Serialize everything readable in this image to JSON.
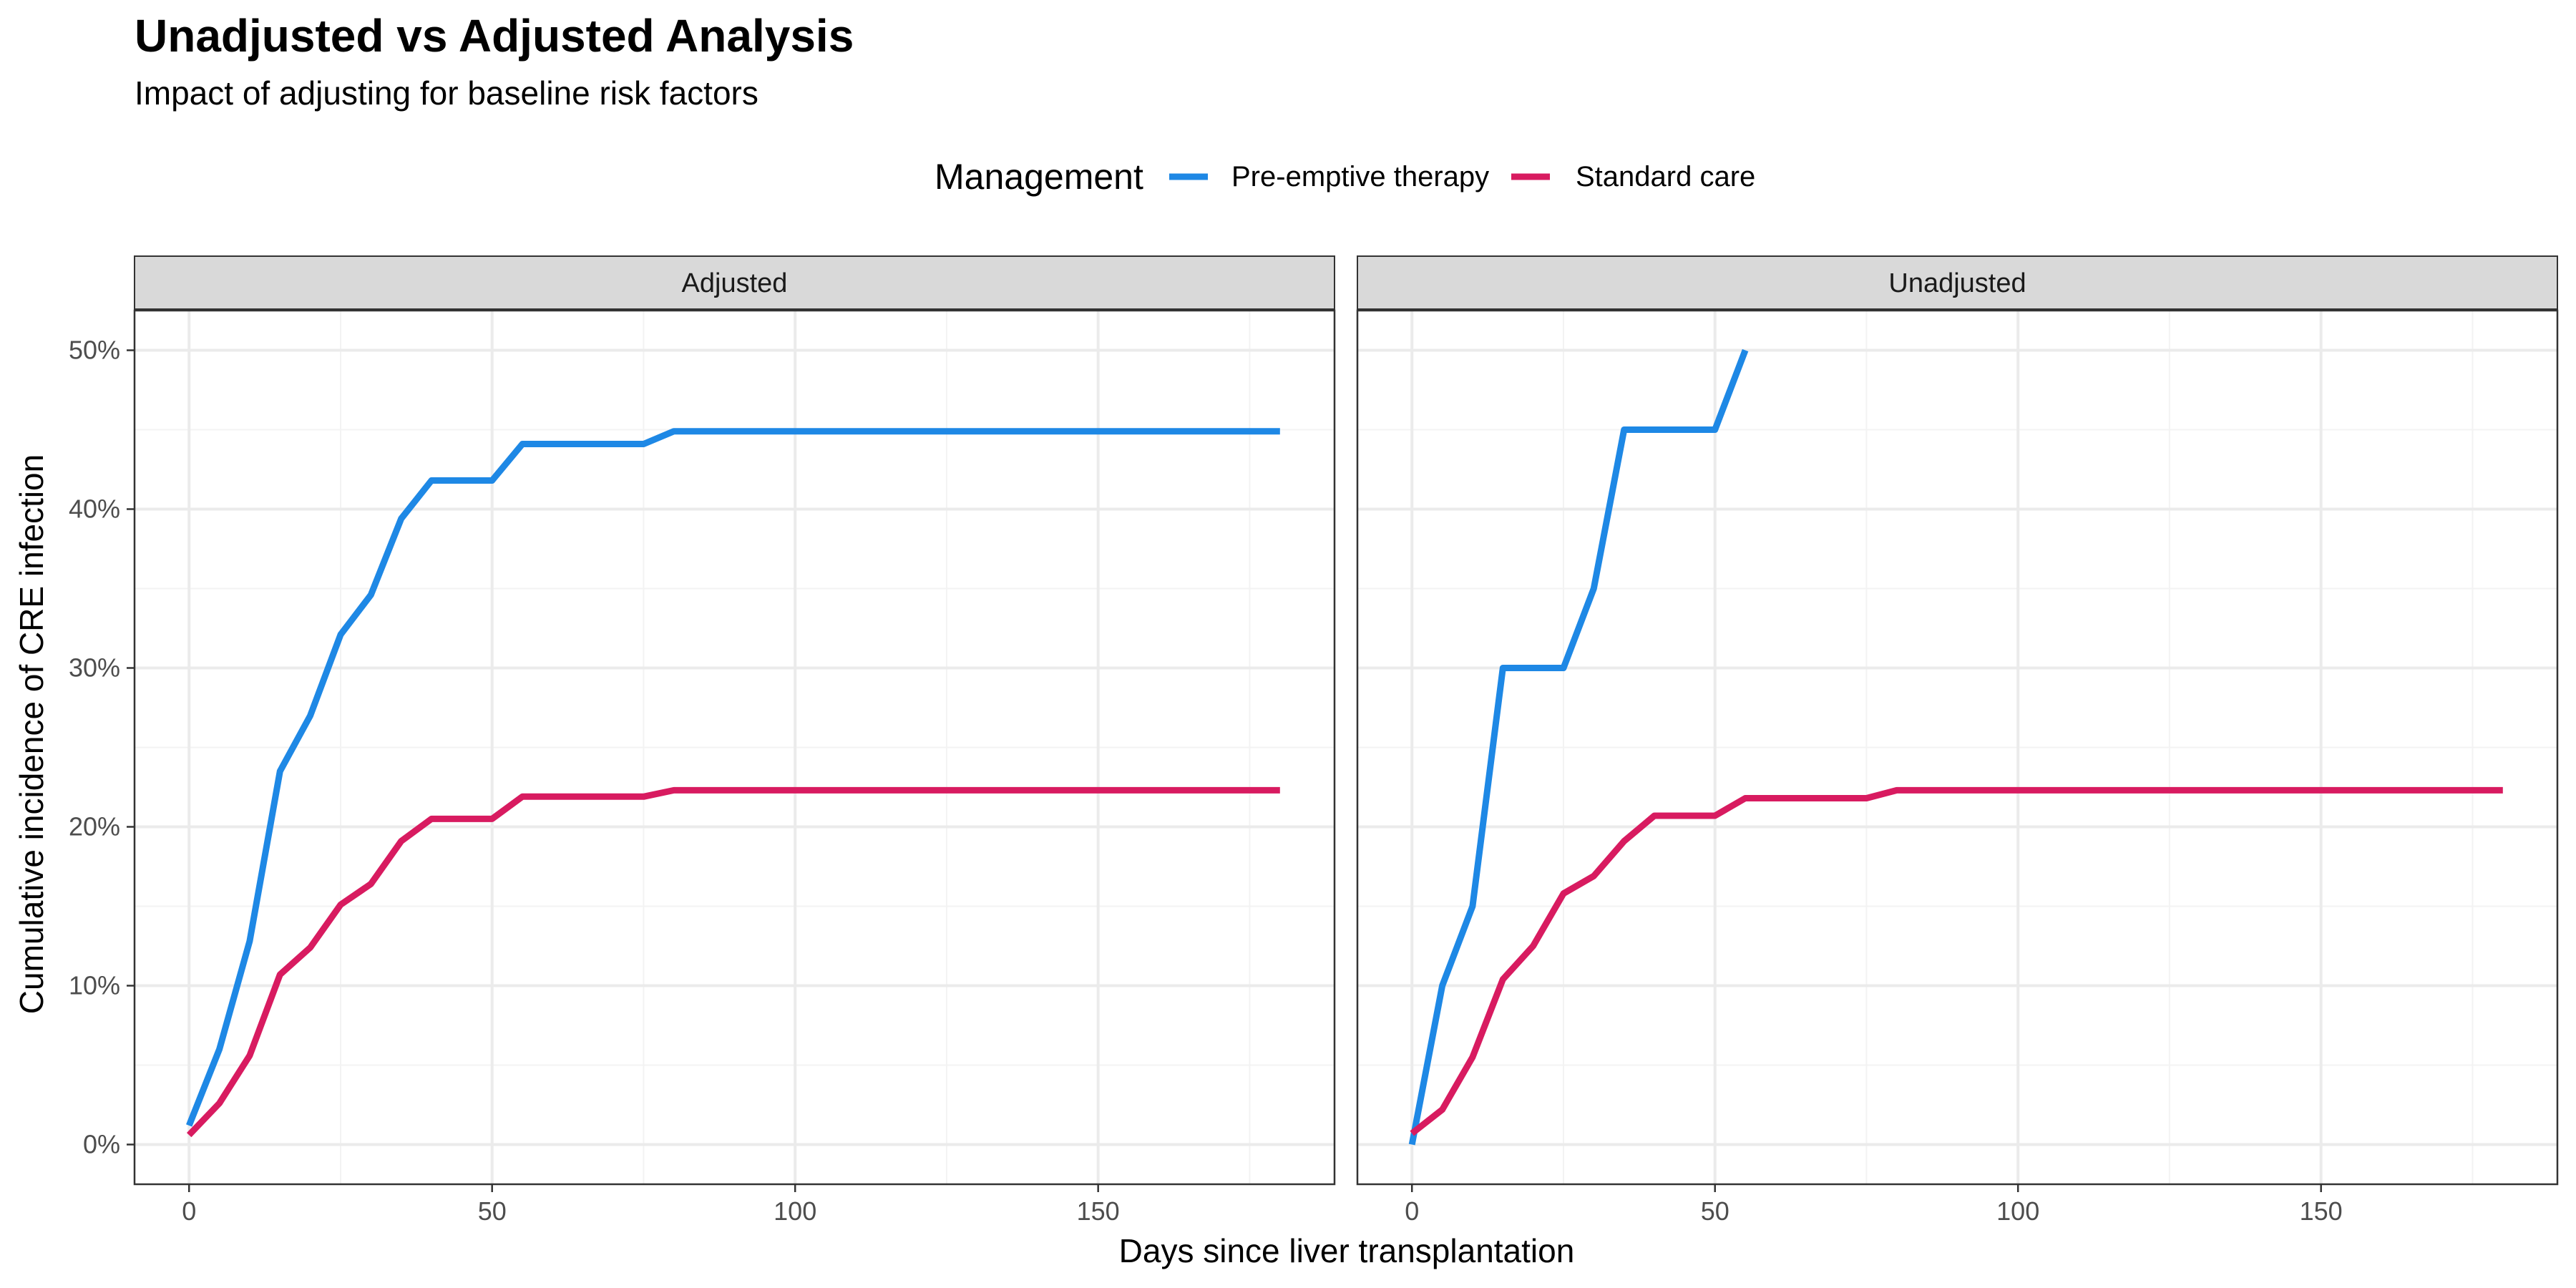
{
  "chart_data": {
    "type": "line",
    "title": "Unadjusted vs Adjusted Analysis",
    "subtitle": "Impact of adjusting for baseline risk factors",
    "xlabel": "Days since liver transplantation",
    "ylabel": "Cumulative incidence of CRE infection",
    "legend": {
      "title": "Management",
      "placement": "top",
      "entries": [
        {
          "name": "Pre-emptive therapy",
          "color": "#1E88E5"
        },
        {
          "name": "Standard care",
          "color": "#D81B60"
        }
      ]
    },
    "xlim": [
      -9,
      189
    ],
    "ylim": [
      -0.025,
      0.525
    ],
    "x_ticks": [
      0,
      50,
      100,
      150
    ],
    "x_tick_labels": [
      "0",
      "50",
      "100",
      "150"
    ],
    "y_ticks": [
      0,
      0.1,
      0.2,
      0.3,
      0.4,
      0.5
    ],
    "y_tick_labels": [
      "0%",
      "10%",
      "20%",
      "30%",
      "40%",
      "50%"
    ],
    "grid": true,
    "facets": [
      {
        "label": "Adjusted",
        "series": [
          {
            "name": "Pre-emptive therapy",
            "color": "#1E88E5",
            "x": [
              0,
              5,
              10,
              15,
              20,
              25,
              30,
              35,
              40,
              45,
              50,
              55,
              60,
              65,
              70,
              75,
              80,
              90,
              100,
              120,
              150,
              180
            ],
            "y": [
              0.012,
              0.06,
              0.128,
              0.235,
              0.27,
              0.321,
              0.346,
              0.394,
              0.418,
              0.418,
              0.418,
              0.441,
              0.441,
              0.441,
              0.441,
              0.441,
              0.449,
              0.449,
              0.449,
              0.449,
              0.449,
              0.449
            ]
          },
          {
            "name": "Standard care",
            "color": "#D81B60",
            "x": [
              0,
              5,
              10,
              15,
              20,
              25,
              30,
              35,
              40,
              45,
              50,
              55,
              60,
              65,
              70,
              75,
              80,
              90,
              100,
              120,
              150,
              180
            ],
            "y": [
              0.006,
              0.026,
              0.056,
              0.107,
              0.124,
              0.151,
              0.164,
              0.191,
              0.205,
              0.205,
              0.205,
              0.219,
              0.219,
              0.219,
              0.219,
              0.219,
              0.223,
              0.223,
              0.223,
              0.223,
              0.223,
              0.223
            ]
          }
        ]
      },
      {
        "label": "Unadjusted",
        "series": [
          {
            "name": "Pre-emptive therapy",
            "color": "#1E88E5",
            "x": [
              0,
              5,
              10,
              15,
              20,
              25,
              30,
              35,
              40,
              45,
              50,
              55
            ],
            "y": [
              0.0,
              0.1,
              0.15,
              0.3,
              0.3,
              0.3,
              0.35,
              0.45,
              0.45,
              0.45,
              0.45,
              0.5
            ]
          },
          {
            "name": "Standard care",
            "color": "#D81B60",
            "x": [
              0,
              5,
              10,
              15,
              20,
              25,
              30,
              35,
              40,
              45,
              50,
              55,
              60,
              65,
              70,
              75,
              80,
              90,
              100,
              120,
              150,
              180
            ],
            "y": [
              0.007,
              0.022,
              0.055,
              0.104,
              0.125,
              0.158,
              0.169,
              0.191,
              0.207,
              0.207,
              0.207,
              0.218,
              0.218,
              0.218,
              0.218,
              0.218,
              0.223,
              0.223,
              0.223,
              0.223,
              0.223,
              0.223
            ]
          }
        ]
      }
    ]
  }
}
